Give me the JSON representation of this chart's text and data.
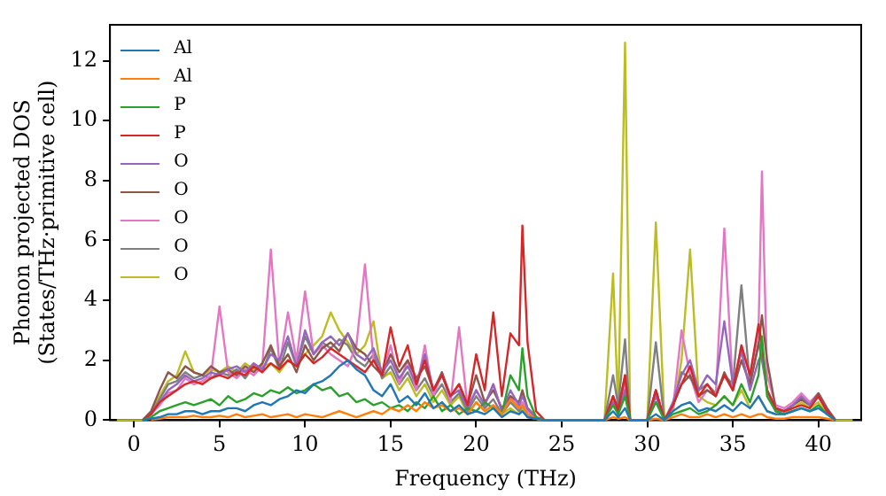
{
  "chart_data": {
    "type": "line",
    "xlabel": "Frequency (THz)",
    "ylabel": "Phonon projected DOS\n(States/THz·primitive cell)",
    "xlim": [
      -1.4,
      42.5
    ],
    "ylim": [
      0,
      13.2
    ],
    "xticks": [
      0,
      5,
      10,
      15,
      20,
      25,
      30,
      35,
      40
    ],
    "yticks": [
      0,
      2,
      4,
      6,
      8,
      10,
      12
    ],
    "legend": "top left",
    "grid": false,
    "marker": "none",
    "line_style": "solid",
    "x": [
      -1,
      0,
      0.5,
      1,
      1.5,
      2,
      2.5,
      3,
      3.5,
      4,
      4.5,
      5,
      5.5,
      6,
      6.5,
      7,
      7.5,
      8,
      8.5,
      9,
      9.5,
      10,
      10.5,
      11,
      11.5,
      12,
      12.5,
      13,
      13.5,
      14,
      14.5,
      15,
      15.5,
      16,
      16.5,
      17,
      17.5,
      18,
      18.5,
      19,
      19.5,
      20,
      20.5,
      21,
      21.5,
      22,
      22.5,
      22.7,
      23,
      23.5,
      24,
      27.5,
      28,
      28.3,
      28.7,
      29,
      29.5,
      30,
      30.5,
      31,
      31.5,
      32,
      32.5,
      33,
      33.5,
      34,
      34.5,
      35,
      35.5,
      36,
      36.5,
      36.7,
      37,
      37.5,
      38,
      38.5,
      39,
      39.5,
      40,
      40.5,
      41,
      42
    ],
    "series": [
      {
        "name": "Al",
        "color": "#1f77b4",
        "values": [
          null,
          null,
          0,
          0.05,
          0.1,
          0.2,
          0.2,
          0.3,
          0.3,
          0.2,
          0.3,
          0.3,
          0.4,
          0.4,
          0.3,
          0.5,
          0.6,
          0.5,
          0.7,
          0.8,
          1.0,
          0.9,
          1.2,
          1.3,
          1.5,
          1.8,
          2.0,
          1.7,
          1.5,
          1.0,
          0.8,
          1.2,
          0.6,
          0.8,
          0.5,
          0.9,
          0.4,
          0.6,
          0.3,
          0.5,
          0.2,
          0.3,
          0.2,
          0.4,
          0.1,
          0.3,
          0.2,
          0.3,
          0.1,
          0.05,
          0,
          0,
          0.3,
          0.1,
          0.4,
          0,
          0,
          0,
          0.2,
          0,
          0.3,
          0.5,
          0.6,
          0.3,
          0.4,
          0.3,
          0.5,
          0.3,
          0.6,
          0.4,
          0.8,
          0.6,
          0.3,
          0.2,
          0.2,
          0.3,
          0.4,
          0.3,
          0.4,
          0.2,
          0,
          null
        ]
      },
      {
        "name": "Al",
        "color": "#ff7f0e",
        "values": [
          null,
          null,
          null,
          0.02,
          0.05,
          0.1,
          0.1,
          0.1,
          0.15,
          0.1,
          0.1,
          0.15,
          0.1,
          0.2,
          0.1,
          0.15,
          0.2,
          0.1,
          0.15,
          0.2,
          0.1,
          0.2,
          0.15,
          0.1,
          0.2,
          0.3,
          0.2,
          0.1,
          0.2,
          0.3,
          0.2,
          0.4,
          0.3,
          0.5,
          0.3,
          0.6,
          0.4,
          0.5,
          0.3,
          0.4,
          0.2,
          0.6,
          0.3,
          0.5,
          0.2,
          0.7,
          0.4,
          0.5,
          0.2,
          0.05,
          0,
          0,
          0.1,
          0.05,
          0.1,
          0,
          0,
          0,
          0.05,
          0,
          0.1,
          0.2,
          0.1,
          0.1,
          0.2,
          0.1,
          0.2,
          0.1,
          0.2,
          0.1,
          0.2,
          0.2,
          0.1,
          0.05,
          0.05,
          0.1,
          0.1,
          0.1,
          0.1,
          0.05,
          0,
          null
        ]
      },
      {
        "name": "P",
        "color": "#2ca02c",
        "values": [
          null,
          null,
          0,
          0.1,
          0.3,
          0.4,
          0.5,
          0.6,
          0.5,
          0.6,
          0.7,
          0.5,
          0.8,
          0.6,
          0.7,
          0.9,
          0.8,
          1.0,
          0.9,
          1.1,
          0.9,
          1.0,
          1.2,
          1.0,
          1.1,
          0.8,
          0.9,
          0.6,
          0.7,
          0.5,
          0.6,
          0.4,
          0.5,
          0.3,
          0.6,
          0.4,
          0.8,
          0.3,
          0.5,
          0.2,
          0.4,
          0.3,
          0.6,
          0.4,
          0.2,
          1.5,
          1.0,
          2.4,
          0.8,
          0.1,
          0,
          0,
          0.5,
          0.2,
          0.8,
          0,
          0,
          0,
          0.6,
          0,
          0.2,
          0.3,
          0.4,
          0.2,
          0.3,
          0.5,
          0.8,
          0.5,
          1.2,
          0.6,
          1.5,
          2.8,
          0.8,
          0.3,
          0.2,
          0.3,
          0.4,
          0.3,
          0.5,
          0.2,
          0,
          null
        ]
      },
      {
        "name": "P",
        "color": "#d62728",
        "values": [
          null,
          null,
          0,
          0.2,
          0.6,
          0.8,
          1.0,
          1.2,
          1.3,
          1.2,
          1.4,
          1.5,
          1.4,
          1.6,
          1.5,
          1.8,
          1.6,
          1.9,
          1.7,
          2.0,
          1.8,
          2.2,
          1.9,
          2.1,
          2.4,
          2.2,
          2.0,
          1.8,
          1.6,
          2.0,
          1.5,
          3.1,
          1.8,
          2.5,
          1.2,
          2.0,
          1.0,
          1.5,
          0.8,
          1.2,
          0.5,
          2.2,
          1.0,
          3.6,
          0.8,
          2.9,
          2.5,
          6.5,
          2.6,
          0.3,
          0,
          0,
          0.8,
          0.3,
          1.5,
          0,
          0,
          0,
          1.0,
          0,
          0.5,
          1.2,
          1.8,
          0.8,
          1.2,
          0.8,
          1.5,
          1.0,
          2.5,
          1.5,
          3.2,
          2.5,
          1.0,
          0.4,
          0.3,
          0.4,
          0.5,
          0.4,
          0.8,
          0.3,
          0,
          null
        ]
      },
      {
        "name": "O",
        "color": "#9467bd",
        "values": [
          null,
          null,
          0,
          0.2,
          0.6,
          1.0,
          1.2,
          1.5,
          1.3,
          1.4,
          1.6,
          1.5,
          1.7,
          1.8,
          1.6,
          1.9,
          1.7,
          2.2,
          2.0,
          2.8,
          1.8,
          3.0,
          2.2,
          2.6,
          2.8,
          2.5,
          2.9,
          2.2,
          2.0,
          2.4,
          1.6,
          2.0,
          1.4,
          1.8,
          1.2,
          2.2,
          1.0,
          1.5,
          0.8,
          1.0,
          0.4,
          1.0,
          0.5,
          1.2,
          0.3,
          1.0,
          0.5,
          0.8,
          0.4,
          0.1,
          0,
          0,
          0.6,
          0.2,
          1.0,
          0,
          0,
          0,
          0.8,
          0,
          0.6,
          1.5,
          2.0,
          1.0,
          1.5,
          1.2,
          3.3,
          1.2,
          2.3,
          1.0,
          2.0,
          2.2,
          1.0,
          0.4,
          0.3,
          0.5,
          0.8,
          0.5,
          0.8,
          0.3,
          null,
          null
        ]
      },
      {
        "name": "O",
        "color": "#8c564b",
        "values": [
          null,
          null,
          0,
          0.3,
          1.0,
          1.6,
          1.4,
          1.8,
          1.6,
          1.5,
          1.8,
          1.6,
          1.7,
          1.5,
          1.8,
          1.6,
          1.9,
          2.5,
          1.8,
          2.2,
          1.6,
          2.5,
          2.0,
          2.4,
          2.6,
          2.3,
          2.9,
          2.4,
          2.2,
          1.8,
          1.5,
          2.2,
          1.6,
          2.0,
          1.4,
          1.8,
          1.0,
          1.6,
          0.8,
          1.2,
          0.5,
          1.5,
          0.6,
          1.0,
          0.4,
          0.8,
          0.6,
          1.0,
          0.4,
          0.1,
          0,
          0,
          0.8,
          0.4,
          1.5,
          0,
          0,
          0,
          1.0,
          0,
          0.5,
          1.2,
          1.5,
          0.8,
          1.0,
          0.8,
          1.6,
          1.0,
          2.0,
          1.2,
          2.5,
          3.5,
          2.0,
          0.4,
          0.3,
          0.5,
          0.7,
          0.5,
          0.9,
          0.4,
          0,
          null
        ]
      },
      {
        "name": "O",
        "color": "#e377c2",
        "values": [
          null,
          null,
          0,
          0.2,
          0.5,
          0.9,
          1.0,
          1.4,
          1.2,
          1.3,
          1.5,
          3.8,
          1.6,
          1.4,
          1.7,
          1.5,
          1.8,
          5.7,
          1.8,
          3.6,
          2.0,
          4.3,
          2.2,
          2.5,
          2.2,
          2.0,
          1.8,
          2.5,
          5.2,
          2.0,
          1.5,
          2.5,
          1.2,
          2.0,
          1.0,
          2.5,
          0.8,
          1.6,
          0.6,
          3.1,
          0.4,
          1.0,
          0.5,
          1.2,
          0.3,
          0.8,
          0.4,
          0.6,
          0.3,
          0.1,
          0,
          0,
          0.8,
          0.3,
          1.2,
          0,
          0,
          0,
          1.0,
          0,
          0.4,
          3.0,
          1.5,
          0.6,
          1.0,
          0.8,
          6.4,
          1.0,
          2.5,
          1.5,
          3.0,
          8.3,
          1.5,
          0.5,
          0.4,
          0.6,
          0.9,
          0.6,
          0.9,
          0.4,
          0,
          null
        ]
      },
      {
        "name": "O",
        "color": "#7f7f7f",
        "values": [
          null,
          null,
          0,
          0.2,
          0.7,
          1.2,
          1.3,
          1.6,
          1.4,
          1.5,
          1.4,
          1.6,
          1.5,
          1.7,
          1.4,
          1.8,
          1.6,
          2.4,
          1.7,
          2.6,
          1.8,
          2.8,
          2.2,
          2.6,
          2.4,
          2.7,
          2.5,
          2.0,
          1.8,
          2.2,
          1.4,
          1.8,
          1.2,
          1.6,
          1.0,
          1.4,
          0.8,
          1.2,
          0.6,
          0.9,
          0.3,
          0.8,
          0.4,
          0.7,
          0.2,
          0.6,
          0.3,
          0.5,
          0.2,
          0.05,
          0,
          0,
          1.5,
          0.5,
          2.7,
          0,
          0,
          0,
          2.6,
          0,
          0.5,
          1.6,
          1.4,
          1.0,
          1.2,
          0.9,
          1.5,
          1.2,
          4.5,
          1.2,
          2.6,
          2.0,
          1.0,
          0.3,
          0.3,
          0.5,
          0.7,
          0.5,
          0.8,
          0.3,
          0,
          null
        ]
      },
      {
        "name": "O",
        "color": "#bcbd22",
        "values": [
          0,
          0,
          0,
          0.2,
          0.8,
          1.3,
          1.5,
          2.3,
          1.6,
          1.5,
          1.7,
          1.6,
          1.8,
          1.6,
          1.9,
          1.7,
          1.8,
          1.9,
          1.6,
          2.0,
          1.8,
          2.2,
          2.5,
          2.8,
          3.6,
          3.0,
          2.6,
          2.2,
          2.5,
          3.3,
          1.4,
          1.6,
          1.0,
          1.4,
          0.8,
          1.2,
          0.6,
          1.0,
          0.5,
          0.8,
          0.2,
          0.6,
          0.3,
          0.5,
          0.2,
          0.4,
          0.2,
          0.4,
          0.1,
          0.05,
          0,
          0,
          4.9,
          0.3,
          12.6,
          0,
          0,
          0,
          6.6,
          0,
          0.3,
          2.0,
          5.7,
          0.8,
          0.6,
          0.5,
          0.8,
          0.5,
          1.0,
          0.4,
          0.8,
          0.6,
          0.3,
          0.2,
          0.2,
          0.4,
          0.6,
          0.4,
          0.6,
          0.2,
          0,
          0
        ]
      }
    ]
  }
}
